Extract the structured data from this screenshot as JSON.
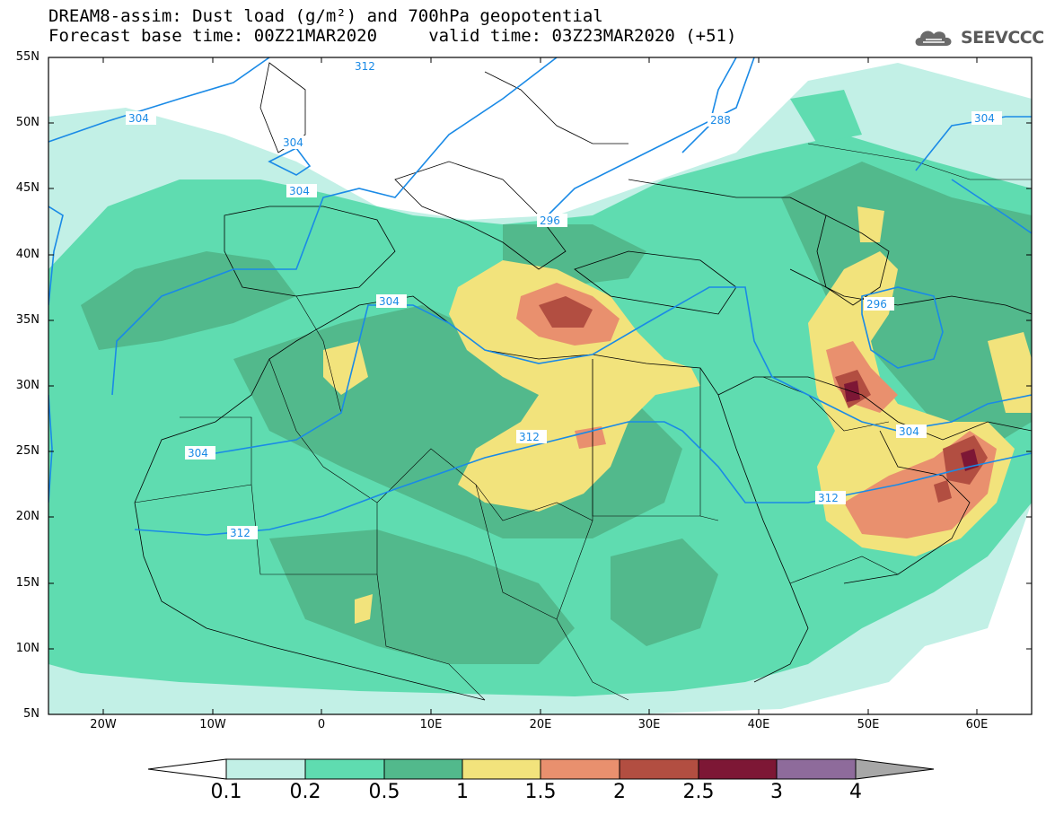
{
  "title": {
    "line1": "DREAM8-assim: Dust load (g/m²) and 700hPa geopotential",
    "line2": "Forecast base time: 00Z21MAR2020     valid time: 03Z23MAR2020 (+51)"
  },
  "brand": {
    "name": "SEEVCCC",
    "icon": "cloud-logo-icon"
  },
  "axes": {
    "lat_labels": [
      "55N",
      "50N",
      "45N",
      "40N",
      "35N",
      "30N",
      "25N",
      "20N",
      "15N",
      "10N",
      "5N"
    ],
    "lon_labels": [
      "20W",
      "10W",
      "0",
      "10E",
      "20E",
      "30E",
      "40E",
      "50E",
      "60E"
    ],
    "lat_range": [
      5,
      55
    ],
    "lon_range": [
      -25,
      65
    ]
  },
  "contour_labels": [
    "312",
    "304",
    "304",
    "304",
    "288",
    "304",
    "296",
    "304",
    "296",
    "312",
    "304",
    "304",
    "312",
    "312"
  ],
  "colorbar": {
    "ticks": [
      "0.1",
      "0.2",
      "0.5",
      "1",
      "1.5",
      "2",
      "2.5",
      "3",
      "4"
    ],
    "colors": [
      "#c2f0e6",
      "#5fdcb0",
      "#52b98c",
      "#f2e37c",
      "#e9906e",
      "#b24e41",
      "#7d1735",
      "#8e6b9b"
    ],
    "low_color": "#ffffff",
    "high_color": "#a7a7a7"
  },
  "colors": {
    "contour": "#1a8ae6",
    "land": "#ffffff",
    "border": "#000000"
  }
}
